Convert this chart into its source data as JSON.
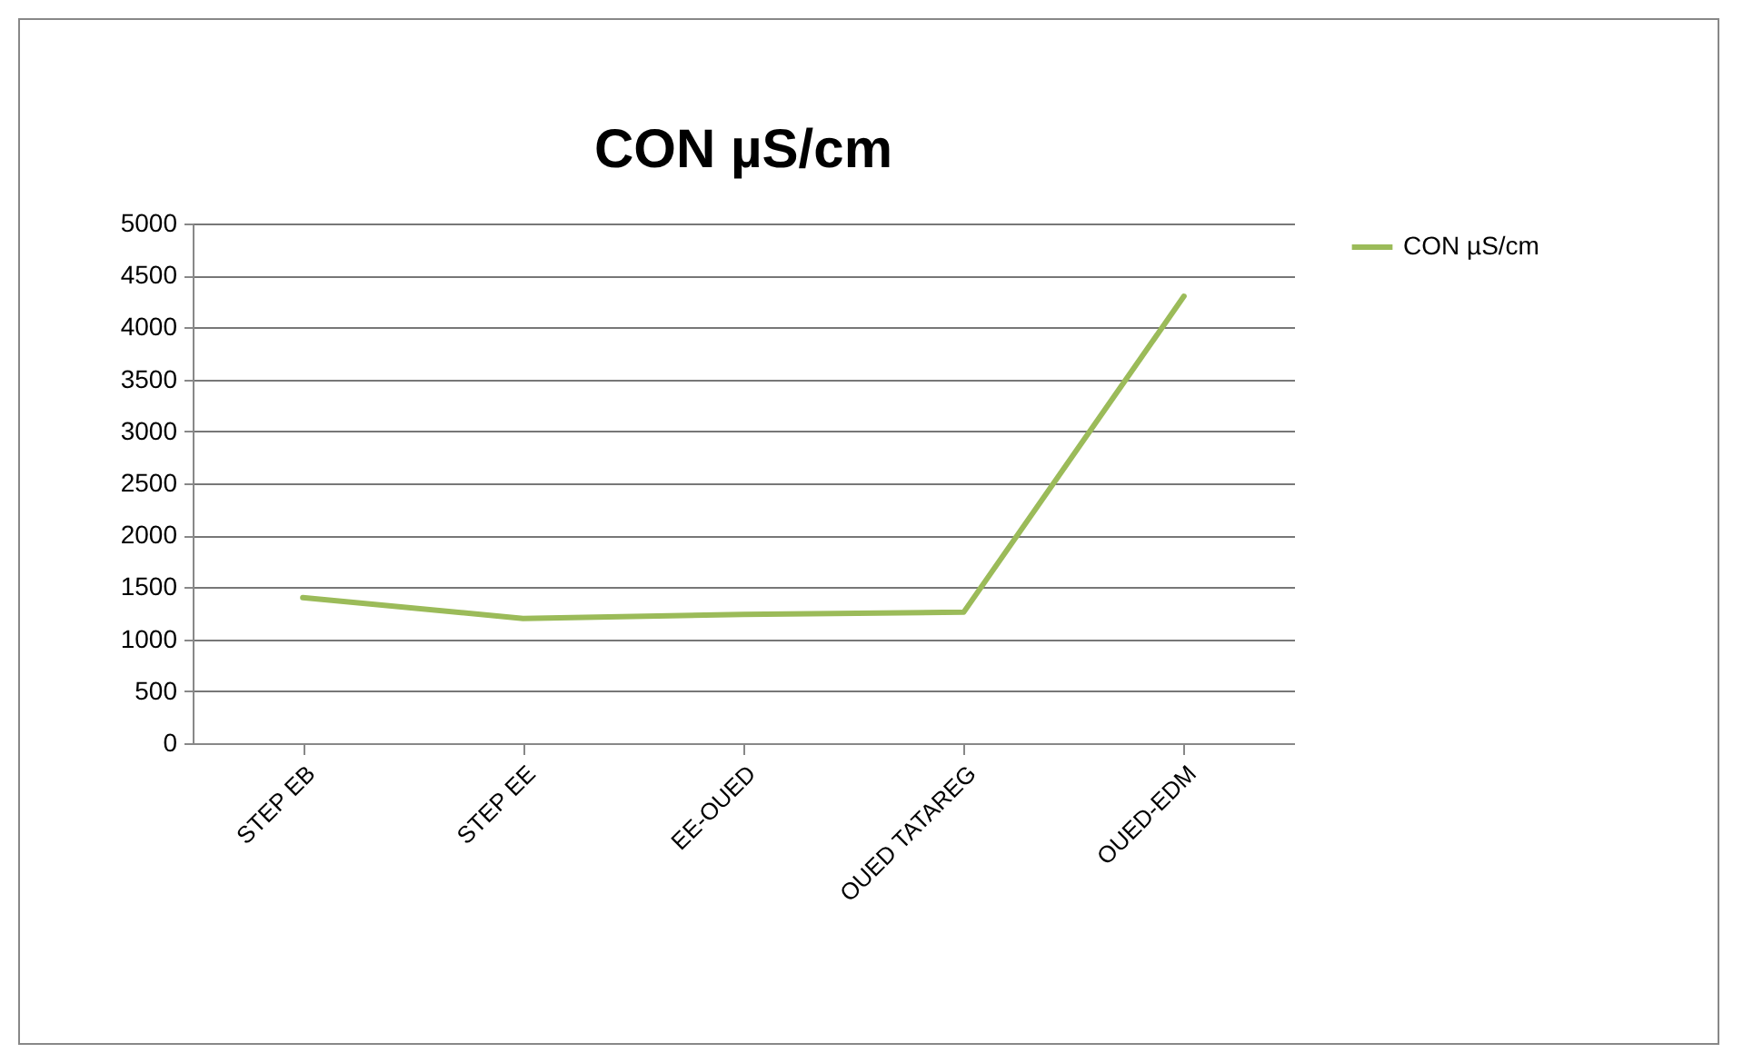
{
  "chart_data": {
    "type": "line",
    "title": "CON µS/cm",
    "categories": [
      "STEP EB",
      "STEP EE",
      "EE-OUED",
      "OUED TATAREG",
      "OUED-EDM"
    ],
    "series": [
      {
        "name": "CON µS/cm",
        "color": "#9bbb59",
        "values": [
          1400,
          1200,
          1240,
          1260,
          4300
        ]
      }
    ],
    "ylim": [
      0,
      5000
    ],
    "yticks": [
      0,
      500,
      1000,
      1500,
      2000,
      2500,
      3000,
      3500,
      4000,
      4500,
      5000
    ],
    "grid": "y",
    "legend": "right",
    "marker": "none"
  }
}
